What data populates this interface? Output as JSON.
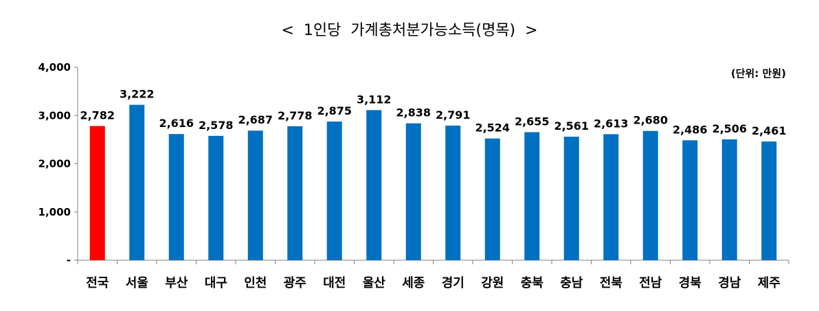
{
  "chart_data": {
    "type": "bar",
    "title": "<  1인당  가계총처분가능소득(명목)  >",
    "unit_label": "(단위: 만원)",
    "categories": [
      "전국",
      "서울",
      "부산",
      "대구",
      "인천",
      "광주",
      "대전",
      "울산",
      "세종",
      "경기",
      "강원",
      "충북",
      "충남",
      "전북",
      "전남",
      "경북",
      "경남",
      "제주"
    ],
    "values": [
      2782,
      3222,
      2616,
      2578,
      2687,
      2778,
      2875,
      3112,
      2838,
      2791,
      2524,
      2655,
      2561,
      2613,
      2680,
      2486,
      2506,
      2461
    ],
    "value_labels": [
      "2,782",
      "3,222",
      "2,616",
      "2,578",
      "2,687",
      "2,778",
      "2,875",
      "3,112",
      "2,838",
      "2,791",
      "2,524",
      "2,655",
      "2,561",
      "2,613",
      "2,680",
      "2,486",
      "2,506",
      "2,461"
    ],
    "ylim": [
      0,
      4000
    ],
    "yticks": [
      0,
      1000,
      2000,
      3000,
      4000
    ],
    "ytick_labels": [
      "-",
      "1,000",
      "2,000",
      "3,000",
      "4,000"
    ],
    "grid": false,
    "colors": {
      "highlight": "#ff0000",
      "bar": "#0070c0",
      "highlight_index": 0
    }
  }
}
